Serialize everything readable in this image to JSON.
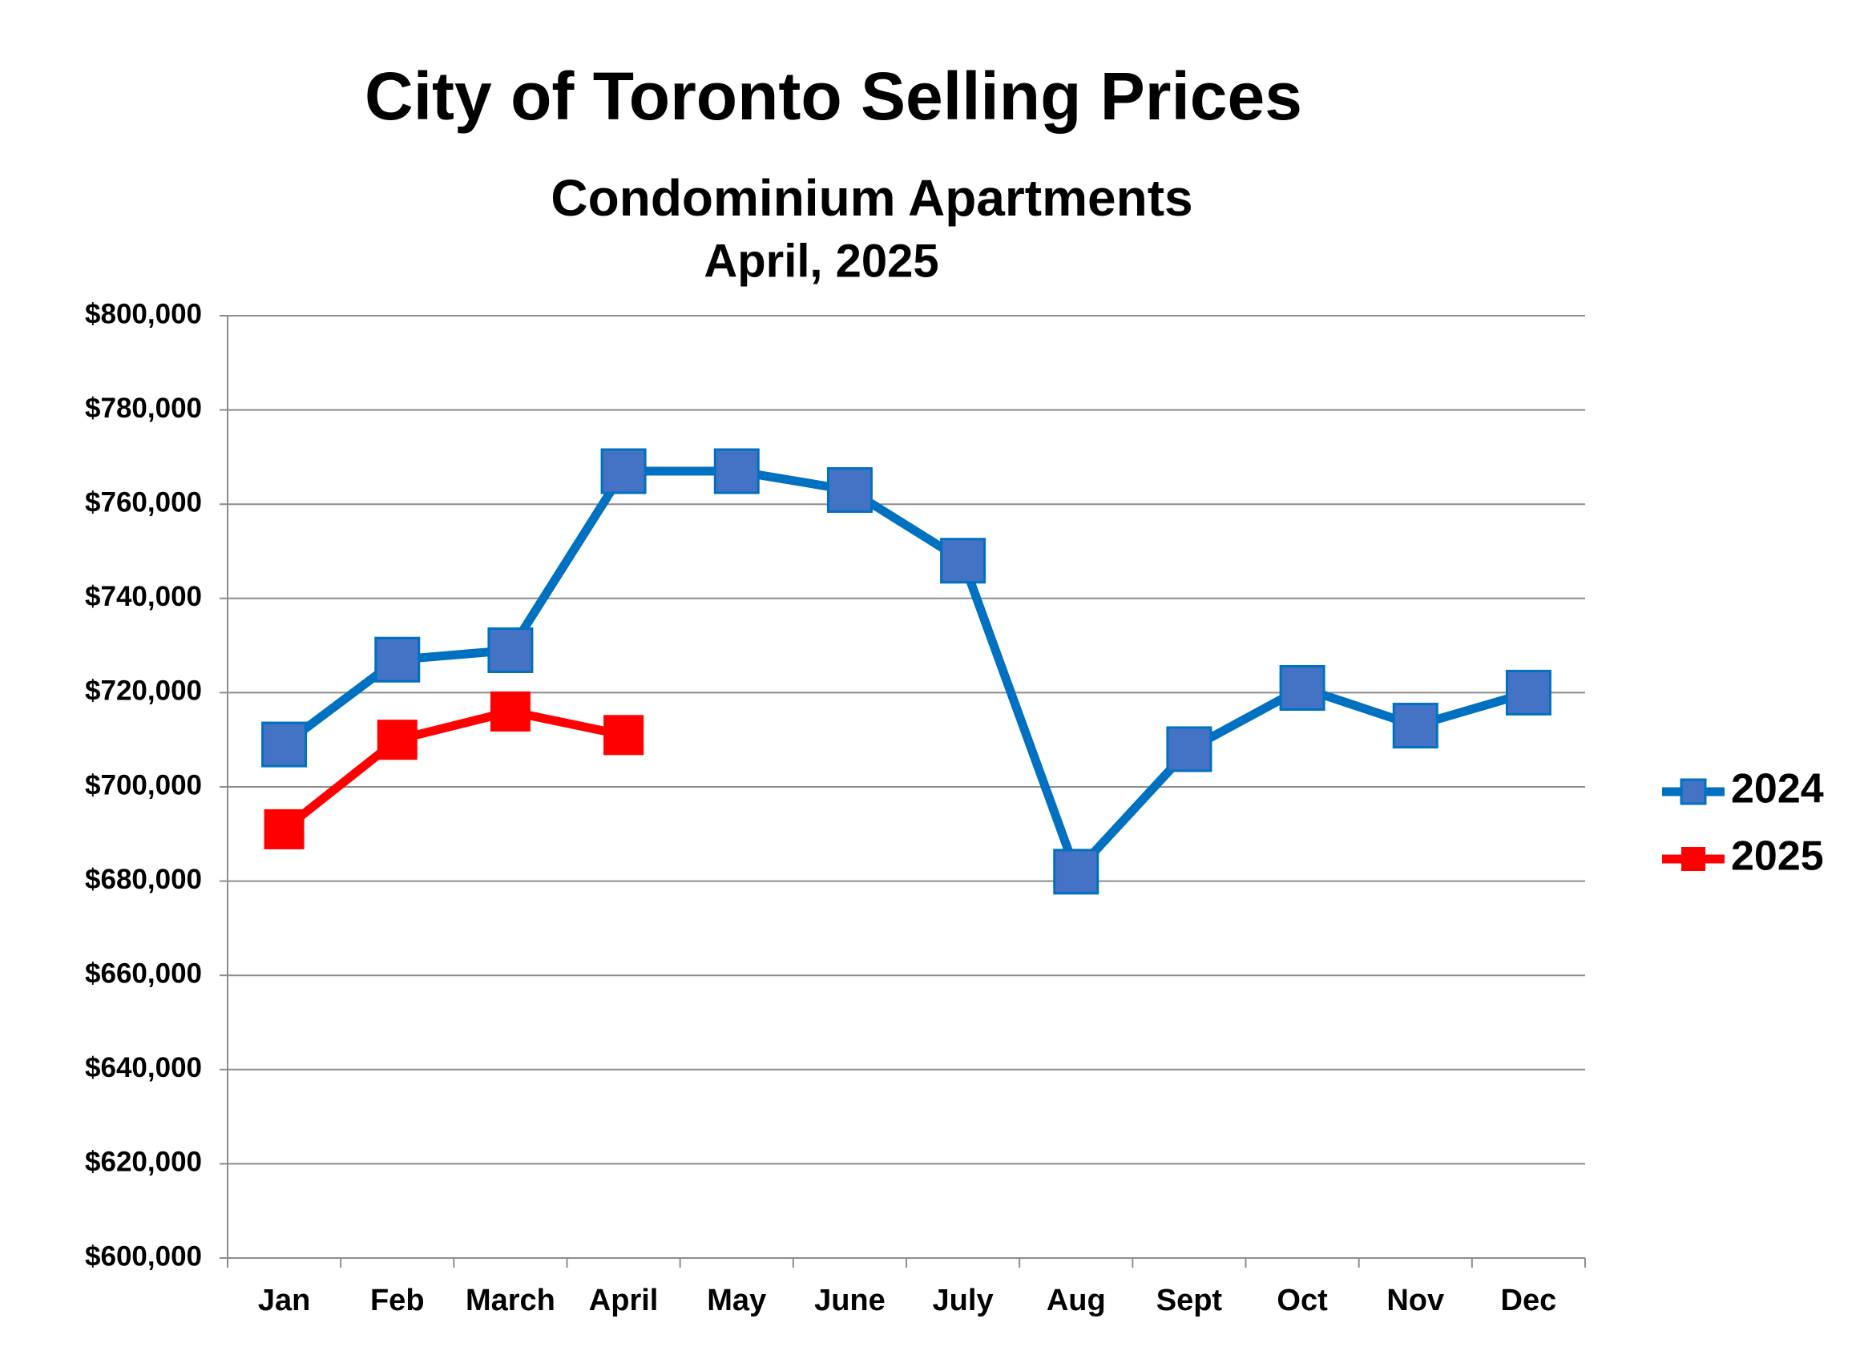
{
  "chart_data": {
    "type": "line",
    "title": "City of Toronto Selling Prices",
    "subtitle": "Condominium Apartments",
    "period": "April, 2025",
    "categories": [
      "Jan",
      "Feb",
      "March",
      "April",
      "May",
      "June",
      "July",
      "Aug",
      "Sept",
      "Oct",
      "Nov",
      "Dec"
    ],
    "series": [
      {
        "name": "2024",
        "color": "#0070c0",
        "marker_color": "#4472c4",
        "values": [
          709000,
          727000,
          729000,
          767000,
          767000,
          763000,
          748000,
          682000,
          708000,
          721000,
          713000,
          720000
        ]
      },
      {
        "name": "2025",
        "color": "#ff0000",
        "marker_color": "#ff0000",
        "values": [
          691000,
          710000,
          716000,
          711000,
          null,
          null,
          null,
          null,
          null,
          null,
          null,
          null
        ]
      }
    ],
    "ylim": [
      600000,
      800000
    ],
    "yticks": [
      {
        "value": 600000,
        "label": "$600,000"
      },
      {
        "value": 620000,
        "label": "$620,000"
      },
      {
        "value": 640000,
        "label": "$640,000"
      },
      {
        "value": 660000,
        "label": "$660,000"
      },
      {
        "value": 680000,
        "label": "$680,000"
      },
      {
        "value": 700000,
        "label": "$700,000"
      },
      {
        "value": 720000,
        "label": "$720,000"
      },
      {
        "value": 740000,
        "label": "$740,000"
      },
      {
        "value": 760000,
        "label": "$760,000"
      },
      {
        "value": 780000,
        "label": "$780,000"
      },
      {
        "value": 800000,
        "label": "$800,000"
      }
    ],
    "grid": true,
    "legend": "right"
  }
}
